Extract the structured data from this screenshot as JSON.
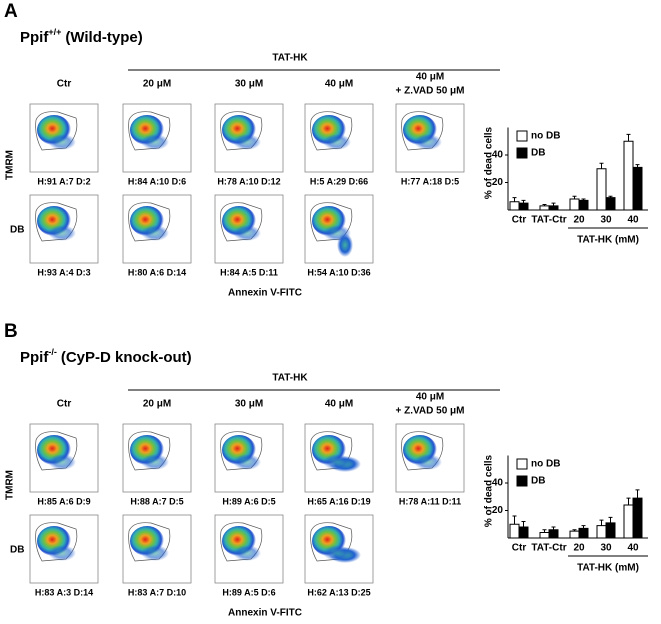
{
  "panels": [
    {
      "label": "A",
      "title": {
        "name": "Ppif",
        "sup": "+/+",
        "rest": "(Wild-type)"
      },
      "group_label": "TAT-HK",
      "columns": [
        "Ctr",
        "20 μM",
        "30 μM",
        "40 μM",
        "40 μM"
      ],
      "column_note": "+ Z.VAD 50 μM",
      "y_label": "TMRM",
      "row_label": "DB",
      "x_label": "Annexin V-FITC",
      "stats": [
        [
          "H:91 A:7 D:2",
          "H:84 A:10 D:6",
          "H:78 A:10 D:12",
          "H:5 A:29 D:66",
          "H:77 A:18 D:5"
        ],
        [
          "H:93 A:4 D:3",
          "H:80 A:6 D:14",
          "H:84 A:5 D:11",
          "H:54 A:10 D:36"
        ]
      ]
    },
    {
      "label": "B",
      "title": {
        "name": "Ppif",
        "sup": "-/-",
        "rest": "(CyP-D knock-out)"
      },
      "group_label": "TAT-HK",
      "columns": [
        "Ctr",
        "20 μM",
        "30 μM",
        "40 μM",
        "40 μM"
      ],
      "column_note": "+ Z.VAD 50 μM",
      "y_label": "TMRM",
      "row_label": "DB",
      "x_label": "Annexin V-FITC",
      "stats": [
        [
          "H:85 A:6 D:9",
          "H:88 A:7 D:5",
          "H:89 A:6 D:5",
          "H:65 A:16 D:19",
          "H:78 A:11 D:11"
        ],
        [
          "H:83 A:3 D:14",
          "H:83 A:7 D:10",
          "H:89 A:5 D:6",
          "H:62 A:13 D:25"
        ]
      ]
    }
  ],
  "chart_data": [
    {
      "type": "bar",
      "y_label": "% of dead cells",
      "categories": [
        "Ctr",
        "TAT-Ctr",
        "20",
        "30",
        "40"
      ],
      "group_label": "TAT-HK (mM)",
      "series": [
        {
          "name": "no DB",
          "color": "#ffffff",
          "values": [
            6,
            3,
            8,
            30,
            50
          ],
          "errors": [
            3,
            1,
            2,
            4,
            5
          ]
        },
        {
          "name": "DB",
          "color": "#000000",
          "values": [
            5,
            3,
            7,
            9,
            31
          ],
          "errors": [
            2,
            2,
            1,
            1,
            2
          ]
        }
      ],
      "ylim": [
        0,
        60
      ],
      "yticks": [
        20,
        40
      ],
      "legend": "upper-left"
    },
    {
      "type": "bar",
      "y_label": "% of dead cells",
      "categories": [
        "Ctr",
        "TAT-Ctr",
        "20",
        "30",
        "40"
      ],
      "group_label": "TAT-HK (mM)",
      "series": [
        {
          "name": "no DB",
          "color": "#ffffff",
          "values": [
            10,
            4,
            5,
            9,
            24
          ],
          "errors": [
            6,
            2,
            1,
            4,
            5
          ]
        },
        {
          "name": "DB",
          "color": "#000000",
          "values": [
            8,
            6,
            7,
            11,
            29
          ],
          "errors": [
            4,
            2,
            2,
            4,
            6
          ]
        }
      ],
      "ylim": [
        0,
        60
      ],
      "yticks": [
        20,
        40
      ],
      "legend": "upper-left"
    }
  ]
}
